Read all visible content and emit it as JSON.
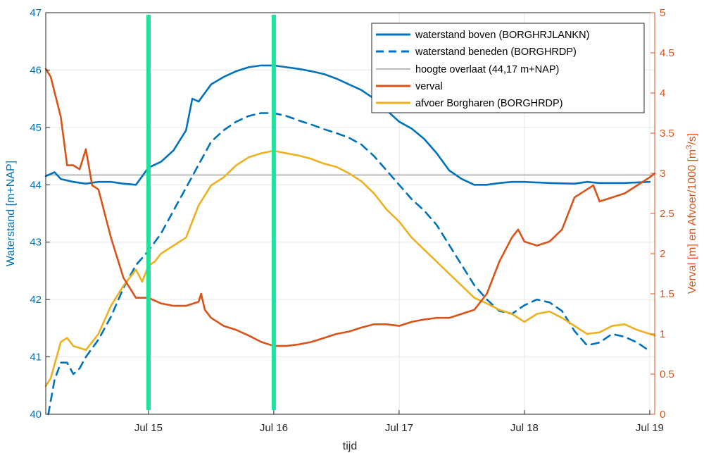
{
  "chart_data": {
    "type": "line",
    "xlabel": "tijd",
    "ylabel_left": "Waterstand [m+NAP]",
    "ylabel_right": "Verval [m] en Afvoer/1000 [m³/s]",
    "ylabel_right_prefix": "Verval [m] en Afvoer/1000 [m",
    "ylabel_right_sup": "3",
    "ylabel_right_suffix": "/s]",
    "x_tick_labels": [
      "Jul 15",
      "Jul 16",
      "Jul 17",
      "Jul 18",
      "Jul 19"
    ],
    "x_tick_days": [
      15,
      16,
      17,
      18,
      19
    ],
    "xlim": [
      14.18,
      19.04
    ],
    "ylim_left": [
      40,
      47
    ],
    "ylim_right": [
      0,
      5
    ],
    "y_ticks_left": [
      "40",
      "41",
      "42",
      "43",
      "44",
      "45",
      "46",
      "47"
    ],
    "y_ticks_right": [
      "0",
      "0.5",
      "1",
      "1.5",
      "2",
      "2.5",
      "3",
      "3.5",
      "4",
      "4.5",
      "5"
    ],
    "grid": true,
    "legend_position": "top-right",
    "vertical_markers": [
      15.0,
      16.0
    ],
    "series": [
      {
        "name": "waterstand boven (BORGHRJLANKN)",
        "axis": "left",
        "color": "#0072BD",
        "style": "solid",
        "x": [
          14.18,
          14.25,
          14.3,
          14.4,
          14.5,
          14.6,
          14.7,
          14.8,
          14.9,
          15.0,
          15.1,
          15.2,
          15.3,
          15.35,
          15.4,
          15.45,
          15.5,
          15.6,
          15.7,
          15.8,
          15.9,
          16.0,
          16.1,
          16.2,
          16.3,
          16.4,
          16.5,
          16.6,
          16.7,
          16.8,
          16.9,
          17.0,
          17.1,
          17.2,
          17.3,
          17.4,
          17.5,
          17.6,
          17.7,
          17.8,
          17.9,
          18.0,
          18.2,
          18.4,
          18.5,
          18.6,
          18.8,
          19.0
        ],
        "y": [
          44.15,
          44.22,
          44.1,
          44.05,
          44.02,
          44.05,
          44.05,
          44.02,
          44.0,
          44.3,
          44.4,
          44.6,
          44.95,
          45.5,
          45.45,
          45.6,
          45.75,
          45.88,
          45.98,
          46.05,
          46.08,
          46.08,
          46.05,
          46.02,
          45.98,
          45.93,
          45.85,
          45.75,
          45.65,
          45.5,
          45.3,
          45.1,
          44.98,
          44.8,
          44.55,
          44.25,
          44.1,
          44.0,
          44.0,
          44.03,
          44.05,
          44.05,
          44.03,
          44.02,
          44.05,
          44.03,
          44.03,
          44.05
        ]
      },
      {
        "name": "waterstand beneden (BORGHRDP)",
        "axis": "left",
        "color": "#0072BD",
        "style": "dashed",
        "x": [
          14.2,
          14.25,
          14.3,
          14.35,
          14.4,
          14.45,
          14.5,
          14.6,
          14.7,
          14.8,
          14.9,
          15.0,
          15.1,
          15.2,
          15.3,
          15.4,
          15.5,
          15.6,
          15.7,
          15.8,
          15.9,
          16.0,
          16.1,
          16.2,
          16.3,
          16.4,
          16.5,
          16.6,
          16.7,
          16.8,
          16.9,
          17.0,
          17.1,
          17.2,
          17.3,
          17.4,
          17.5,
          17.6,
          17.7,
          17.8,
          17.9,
          18.0,
          18.1,
          18.2,
          18.3,
          18.4,
          18.5,
          18.6,
          18.7,
          18.8,
          18.9,
          19.0
        ],
        "y": [
          40.0,
          40.6,
          40.9,
          40.9,
          40.7,
          40.8,
          41.0,
          41.3,
          41.7,
          42.2,
          42.6,
          42.85,
          43.15,
          43.55,
          43.95,
          44.35,
          44.75,
          44.95,
          45.1,
          45.2,
          45.25,
          45.25,
          45.2,
          45.12,
          45.05,
          44.97,
          44.9,
          44.82,
          44.7,
          44.5,
          44.25,
          44.0,
          43.75,
          43.55,
          43.3,
          42.95,
          42.6,
          42.25,
          42.0,
          41.8,
          41.75,
          41.9,
          42.0,
          41.95,
          41.8,
          41.45,
          41.2,
          41.25,
          41.4,
          41.35,
          41.25,
          41.1
        ]
      },
      {
        "name": "hoogte overlaat (44,17 m+NAP)",
        "axis": "left",
        "color": "#a0a0a0",
        "style": "solid",
        "x": [
          14.18,
          19.04
        ],
        "y": [
          44.17,
          44.17
        ]
      },
      {
        "name": "verval",
        "axis": "right",
        "color": "#D95319",
        "style": "solid",
        "x": [
          14.18,
          14.22,
          14.3,
          14.35,
          14.4,
          14.45,
          14.5,
          14.55,
          14.6,
          14.7,
          14.8,
          14.9,
          15.0,
          15.1,
          15.2,
          15.3,
          15.4,
          15.42,
          15.45,
          15.5,
          15.6,
          15.7,
          15.8,
          15.9,
          16.0,
          16.1,
          16.2,
          16.3,
          16.4,
          16.5,
          16.6,
          16.7,
          16.8,
          16.9,
          17.0,
          17.1,
          17.2,
          17.3,
          17.4,
          17.5,
          17.6,
          17.7,
          17.8,
          17.85,
          17.9,
          17.95,
          18.0,
          18.1,
          18.2,
          18.3,
          18.4,
          18.5,
          18.55,
          18.6,
          18.7,
          18.8,
          18.9,
          19.0,
          19.04
        ],
        "y": [
          4.3,
          4.2,
          3.7,
          3.1,
          3.1,
          3.05,
          3.3,
          2.85,
          2.8,
          2.2,
          1.7,
          1.45,
          1.45,
          1.38,
          1.35,
          1.35,
          1.4,
          1.5,
          1.3,
          1.2,
          1.1,
          1.05,
          0.98,
          0.9,
          0.85,
          0.85,
          0.87,
          0.9,
          0.95,
          1.0,
          1.03,
          1.08,
          1.12,
          1.12,
          1.1,
          1.15,
          1.18,
          1.2,
          1.2,
          1.25,
          1.3,
          1.5,
          1.9,
          2.05,
          2.2,
          2.3,
          2.15,
          2.1,
          2.15,
          2.3,
          2.7,
          2.8,
          2.85,
          2.65,
          2.7,
          2.75,
          2.85,
          2.95,
          3.0
        ]
      },
      {
        "name": "afvoer Borgharen (BORGHRDP)",
        "axis": "right",
        "color": "#EDB120",
        "style": "solid",
        "x": [
          14.18,
          14.22,
          14.3,
          14.35,
          14.4,
          14.5,
          14.6,
          14.7,
          14.8,
          14.9,
          14.95,
          15.0,
          15.05,
          15.1,
          15.2,
          15.3,
          15.4,
          15.5,
          15.6,
          15.7,
          15.8,
          15.9,
          16.0,
          16.1,
          16.2,
          16.3,
          16.4,
          16.5,
          16.6,
          16.7,
          16.8,
          16.9,
          17.0,
          17.1,
          17.2,
          17.3,
          17.4,
          17.5,
          17.6,
          17.7,
          17.8,
          17.9,
          18.0,
          18.1,
          18.2,
          18.3,
          18.4,
          18.5,
          18.6,
          18.7,
          18.8,
          18.9,
          19.0,
          19.04
        ],
        "y": [
          0.35,
          0.45,
          0.9,
          0.95,
          0.85,
          0.8,
          1.0,
          1.35,
          1.6,
          1.8,
          1.65,
          1.85,
          1.9,
          2.0,
          2.1,
          2.2,
          2.6,
          2.85,
          2.95,
          3.1,
          3.2,
          3.25,
          3.28,
          3.25,
          3.22,
          3.18,
          3.12,
          3.08,
          3.0,
          2.9,
          2.75,
          2.55,
          2.4,
          2.2,
          2.05,
          1.9,
          1.75,
          1.6,
          1.45,
          1.38,
          1.3,
          1.25,
          1.15,
          1.25,
          1.28,
          1.2,
          1.1,
          1.0,
          1.02,
          1.1,
          1.12,
          1.05,
          1.0,
          0.98
        ]
      }
    ]
  }
}
